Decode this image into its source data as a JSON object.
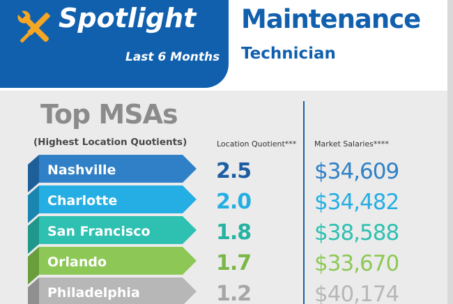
{
  "header": {
    "spotlight": "Spotlight",
    "period": "Last 6 Months",
    "title_line1": "Maintenance",
    "title_line2": "Technician",
    "icon": "wrench-screwdriver-icon"
  },
  "section": {
    "title": "Top MSAs",
    "subtitle": "(Highest Location Quotients)",
    "col_lq": "Location Quotient***",
    "col_salary": "Market Salaries****"
  },
  "colors": {
    "brand_blue": "#1160ae",
    "panel_gray": "#ebebeb"
  },
  "chart_data": {
    "type": "table",
    "categories": [
      "Nashville",
      "Charlotte",
      "San Francisco",
      "Orlando",
      "Philadelphia"
    ],
    "series": [
      {
        "name": "Location Quotient***",
        "values": [
          2.5,
          2.0,
          1.8,
          1.7,
          1.2
        ]
      },
      {
        "name": "Market Salaries****",
        "values": [
          34609,
          34482,
          38588,
          33670,
          40174
        ]
      }
    ],
    "lq_labels": [
      "2.5",
      "2.0",
      "1.8",
      "1.7",
      "1.2"
    ],
    "salary_labels": [
      "$34,609",
      "$34,482",
      "$38,588",
      "$33,670",
      "$40,174"
    ],
    "row_colors": [
      "#2f80c6",
      "#25aee3",
      "#2ec0b1",
      "#8dc856",
      "#b7b7b7"
    ],
    "row_dark_colors": [
      "#1e5f9a",
      "#1985b0",
      "#1f978a",
      "#6a9e3c",
      "#8f8f8f"
    ],
    "lq_colors": [
      "#1d5ea2",
      "#25aee3",
      "#26b3a3",
      "#7ab648",
      "#a6a6a6"
    ],
    "salary_colors": [
      "#2f80c6",
      "#25aee3",
      "#2ec0b1",
      "#8dc856",
      "#b7b7b7"
    ]
  }
}
